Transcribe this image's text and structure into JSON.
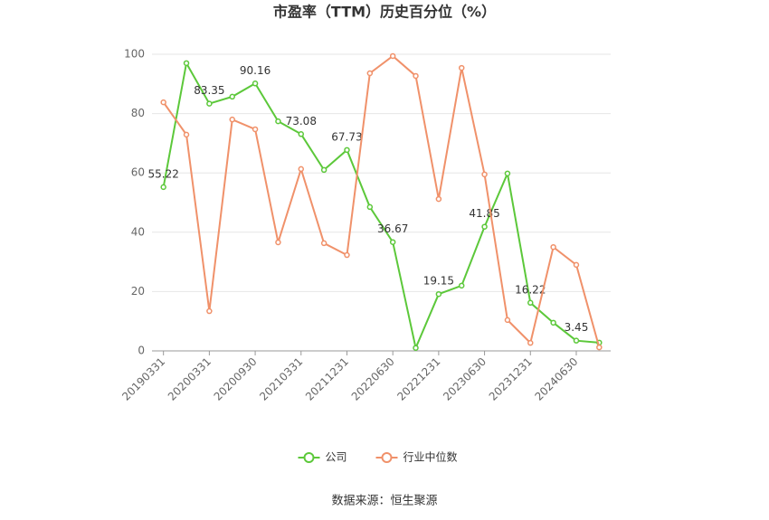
{
  "chart_data": {
    "type": "line",
    "title": "市盈率（TTM）历史百分位（%）",
    "categories": [
      "20190331",
      null,
      "20200331",
      null,
      "20200930",
      null,
      "20210331",
      null,
      "20211231",
      null,
      "20220630",
      null,
      "20221231",
      null,
      "20230630",
      null,
      "20231231",
      null,
      "20240630",
      null
    ],
    "series": [
      {
        "name": "公司",
        "color": "#5cc83a",
        "values": [
          55.22,
          97,
          83.35,
          85.7,
          90.16,
          77.4,
          73.08,
          61,
          67.73,
          48.5,
          36.67,
          1,
          19.15,
          22,
          41.85,
          59.8,
          16.22,
          9.5,
          3.45,
          2.8
        ],
        "value_labels": [
          "55.22",
          null,
          "83.35",
          null,
          "90.16",
          null,
          "73.08",
          null,
          "67.73",
          null,
          "36.67",
          null,
          "19.15",
          null,
          "41.85",
          null,
          "16.22",
          null,
          "3.45",
          null
        ]
      },
      {
        "name": "行业中位数",
        "color": "#f0916a",
        "values": [
          83.8,
          72.9,
          13.4,
          78,
          74.7,
          36.6,
          61.3,
          36.3,
          32.3,
          93.6,
          99.4,
          92.7,
          51.2,
          95.4,
          59.5,
          10.4,
          2.7,
          35,
          29,
          1.2
        ]
      }
    ],
    "ylim": [
      0,
      100
    ],
    "yticks": [
      0,
      20,
      40,
      60,
      80,
      100
    ],
    "grid": true,
    "legend": "bottom",
    "source": "数据来源：恒生聚源"
  }
}
